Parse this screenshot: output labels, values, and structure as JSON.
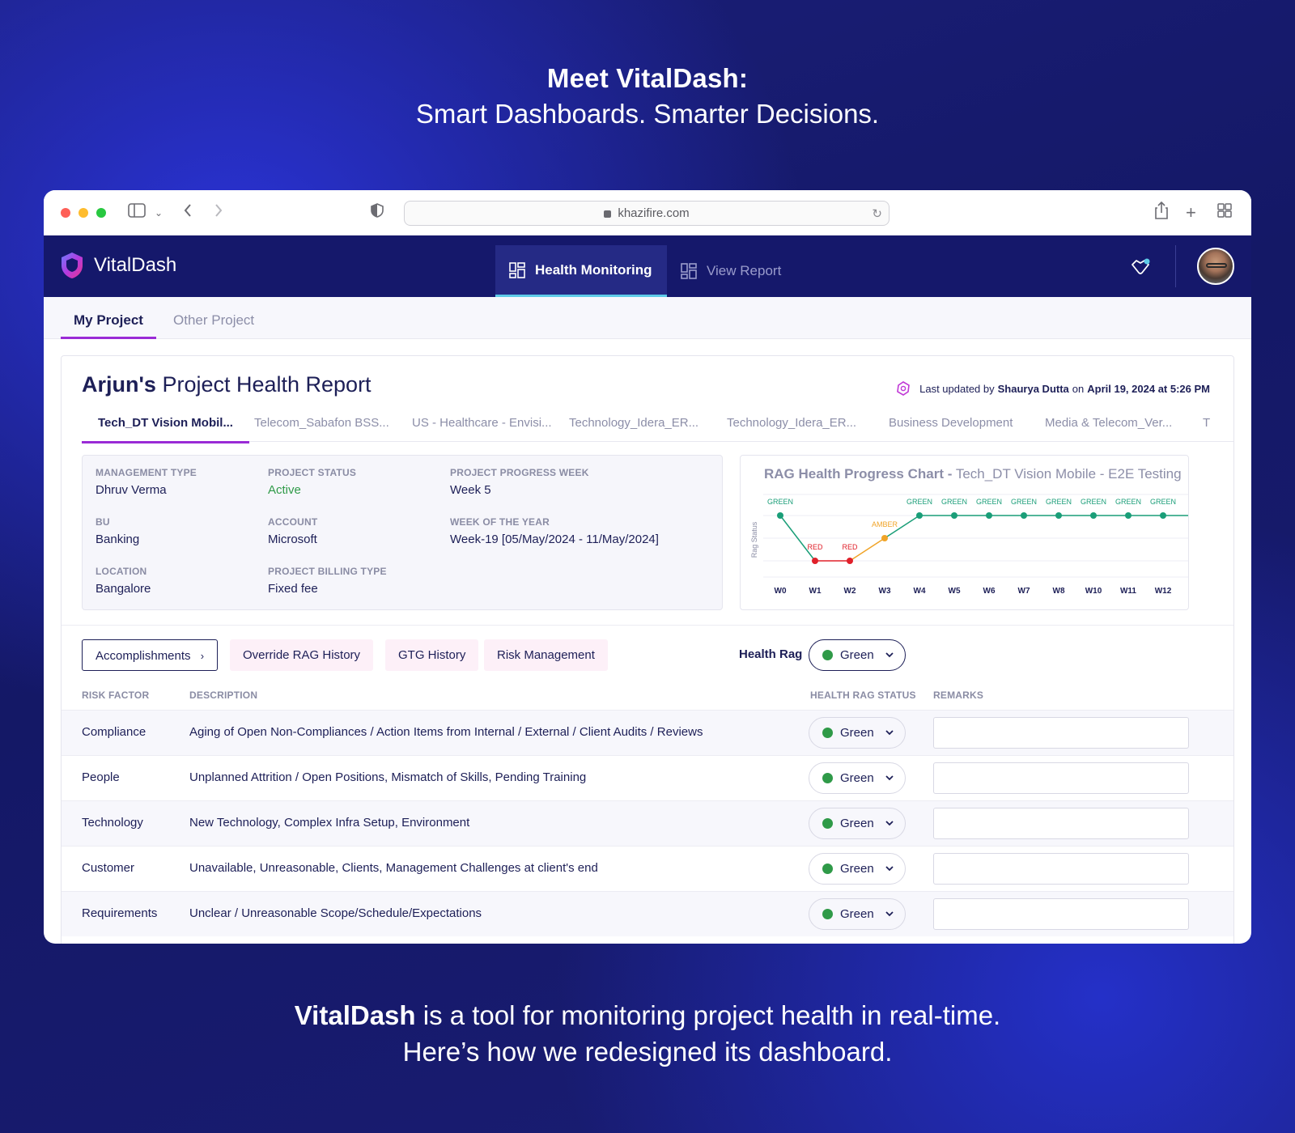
{
  "hero": {
    "title": "Meet VitalDash:",
    "subtitle": "Smart Dashboards. Smarter Decisions.",
    "footer_brand": "VitalDash",
    "footer_line1_rest": " is a tool for monitoring project health in real-time.",
    "footer_line2": "Here’s how we redesigned its dashboard."
  },
  "browser": {
    "url": "khazifire.com"
  },
  "app": {
    "brand": "VitalDash",
    "nav": [
      {
        "label": "Health Monitoring",
        "active": true
      },
      {
        "label": "View Report",
        "active": false
      }
    ],
    "subtabs": [
      "My Project",
      "Other Project"
    ]
  },
  "report": {
    "owner": "Arjun's",
    "title_rest": " Project Health Report",
    "updated_prefix": "Last updated by",
    "updated_by": "Shaurya Dutta",
    "updated_on": "on",
    "updated_at": "April 19, 2024 at 5:26 PM",
    "project_tabs": [
      "Tech_DT Vision Mobil...",
      "Telecom_Sabafon BSS...",
      "US - Healthcare - Envisi...",
      "Technology_Idera_ER...",
      "Technology_Idera_ER...",
      "Business Development",
      "Media & Telecom_Ver...",
      "T"
    ]
  },
  "info": {
    "management_type": {
      "label": "MANAGEMENT TYPE",
      "value": "Dhruv Verma"
    },
    "project_status": {
      "label": "PROJECT STATUS",
      "value": "Active"
    },
    "progress_week": {
      "label": "PROJECT PROGRESS WEEK",
      "value": "Week 5"
    },
    "bu": {
      "label": "BU",
      "value": "Banking"
    },
    "account": {
      "label": "ACCOUNT",
      "value": "Microsoft"
    },
    "week_of_year": {
      "label": "WEEK OF THE YEAR",
      "value": "Week-19 [05/May/2024 - 11/May/2024]"
    },
    "location": {
      "label": "LOCATION",
      "value": "Bangalore"
    },
    "billing_type": {
      "label": "PROJECT BILLING TYPE",
      "value": "Fixed fee"
    }
  },
  "chart_data": {
    "type": "line",
    "title": "RAG Health Progress Chart -",
    "subtitle": "Tech_DT Vision Mobile - E2E Testing",
    "ylabel": "Rag Status",
    "xlabel": "",
    "categories": [
      "W0",
      "W1",
      "W2",
      "W3",
      "W4",
      "W5",
      "W6",
      "W7",
      "W8",
      "W10",
      "W11",
      "W12"
    ],
    "levels": [
      "RED",
      "AMBER",
      "GREEN"
    ],
    "values": [
      "GREEN",
      "RED",
      "RED",
      "AMBER",
      "GREEN",
      "GREEN",
      "GREEN",
      "GREEN",
      "GREEN",
      "GREEN",
      "GREEN",
      "GREEN"
    ],
    "colors": {
      "GREEN": "#1a9e78",
      "RED": "#e0202a",
      "AMBER": "#f0a428"
    },
    "grid": true
  },
  "actions": {
    "buttons": [
      "Accomplishments",
      "Override RAG History",
      "GTG History",
      "Risk Management"
    ],
    "health_rag_label": "Health Rag",
    "health_rag_value": "Green"
  },
  "table": {
    "headers": [
      "RISK FACTOR",
      "DESCRIPTION",
      "HEALTH RAG STATUS",
      "REMARKS"
    ],
    "rows": [
      {
        "factor": "Compliance",
        "description": "Aging of Open Non-Compliances / Action Items from Internal / External / Client Audits / Reviews",
        "status": "Green",
        "remarks": ""
      },
      {
        "factor": "People",
        "description": "Unplanned Attrition / Open Positions, Mismatch of Skills, Pending Training",
        "status": "Green",
        "remarks": ""
      },
      {
        "factor": "Technology",
        "description": "New Technology, Complex Infra Setup, Environment",
        "status": "Green",
        "remarks": ""
      },
      {
        "factor": "Customer",
        "description": "Unavailable, Unreasonable, Clients, Management Challenges at client's end",
        "status": "Green",
        "remarks": ""
      },
      {
        "factor": "Requirements",
        "description": "Unclear / Unreasonable Scope/Schedule/Expectations",
        "status": "Green",
        "remarks": ""
      }
    ]
  },
  "colors": {
    "navy": "#15186b",
    "accent_purple": "#9a2bd6",
    "accent_cyan": "#5ecbe8",
    "status_green": "#2f9a48"
  }
}
